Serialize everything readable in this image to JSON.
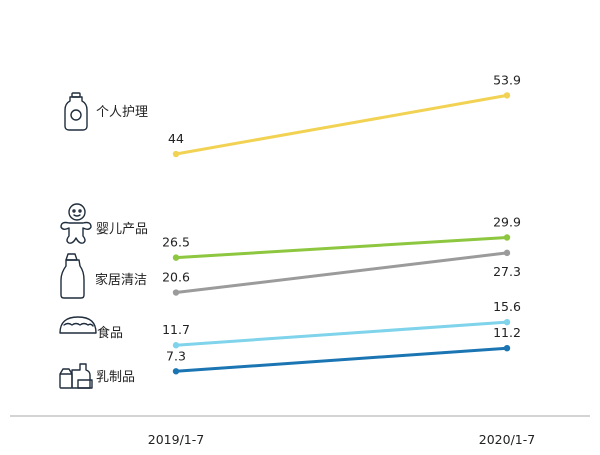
{
  "chart_data": {
    "type": "line",
    "x": [
      "2019/1-7",
      "2020/1-7"
    ],
    "series": [
      {
        "name": "个人护理",
        "values": [
          44,
          53.9
        ],
        "color": "#f2d253",
        "icon": "lotion-bottle-icon"
      },
      {
        "name": "婴儿产品",
        "values": [
          26.5,
          29.9
        ],
        "color": "#8dc63f",
        "icon": "baby-icon"
      },
      {
        "name": "家居清洁",
        "values": [
          20.6,
          27.3
        ],
        "color": "#9b9b9b",
        "icon": "cleaner-bottle-icon"
      },
      {
        "name": "食品",
        "values": [
          11.7,
          15.6
        ],
        "color": "#7fd3ea",
        "icon": "taco-icon"
      },
      {
        "name": "乳制品",
        "values": [
          7.3,
          11.2
        ],
        "color": "#1b75b3",
        "icon": "dairy-icon"
      }
    ],
    "axis_color": "#aaaaaa",
    "grid": false,
    "legend": "left-inline"
  }
}
